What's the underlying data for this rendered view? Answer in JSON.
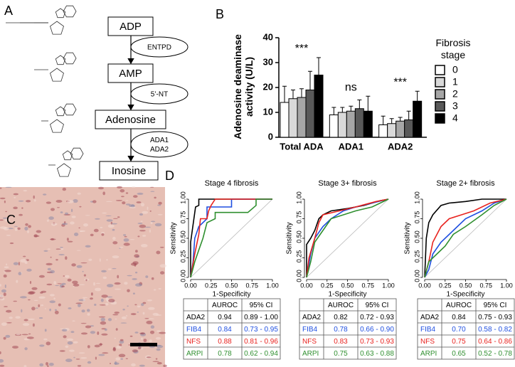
{
  "panel_labels": {
    "a": "A",
    "b": "B",
    "c": "C",
    "d": "D"
  },
  "diagram": {
    "nodes": [
      "ADP",
      "AMP",
      "Adenosine",
      "Inosine"
    ],
    "enzymes": [
      [
        "ENTPD"
      ],
      [
        "5’-NT"
      ],
      [
        "ADA1",
        "ADA2"
      ]
    ]
  },
  "chart_data": [
    {
      "type": "bar",
      "y_label": "Adenosine deaminase activity (U/L)",
      "legend_title": "Fibrosis stage",
      "categories": [
        "Total ADA",
        "ADA1",
        "ADA2"
      ],
      "annotations": [
        "***",
        "ns",
        "***"
      ],
      "series": [
        {
          "name": "0",
          "color": "#ffffff",
          "values": [
            14,
            9,
            5
          ],
          "errors": [
            6.5,
            3,
            3.5
          ]
        },
        {
          "name": "1",
          "color": "#d9d9d9",
          "values": [
            15.5,
            10,
            5.5
          ],
          "errors": [
            3.5,
            2,
            2
          ]
        },
        {
          "name": "2",
          "color": "#a6a6a6",
          "values": [
            16,
            10.5,
            6.5
          ],
          "errors": [
            3.5,
            2,
            1.5
          ]
        },
        {
          "name": "3",
          "color": "#595959",
          "values": [
            19,
            11.5,
            7
          ],
          "errors": [
            7.5,
            3.5,
            3.5
          ]
        },
        {
          "name": "4",
          "color": "#000000",
          "values": [
            25,
            10.5,
            14.5
          ],
          "errors": [
            7,
            6,
            4
          ]
        }
      ],
      "ylim": [
        0,
        40
      ],
      "yticks": [
        0,
        10,
        20,
        30,
        40
      ]
    },
    {
      "type": "line",
      "title": "Stage 4 fibrosis",
      "x_label": "1-Specificity",
      "y_label": "Sensitivity",
      "xlim": [
        0,
        1
      ],
      "ylim": [
        0,
        1
      ],
      "xticks": [
        {
          "value": 0,
          "label": "0.00"
        },
        {
          "value": 0.25,
          "label": "0.25"
        },
        {
          "value": 0.5,
          "label": "0.50"
        },
        {
          "value": 0.75,
          "label": "0.75"
        },
        {
          "value": 1,
          "label": "1.00"
        }
      ],
      "yticks": [
        {
          "value": 0,
          "label": "0.00"
        },
        {
          "value": 0.25,
          "label": "0.25"
        },
        {
          "value": 0.5,
          "label": "0.50"
        },
        {
          "value": 0.75,
          "label": "0.75"
        },
        {
          "value": 1,
          "label": "1.00"
        }
      ],
      "table_header": [
        "AUROC",
        "95% CI"
      ],
      "series": [
        {
          "name": "ADA2",
          "color": "#000000",
          "auroc": "0.94",
          "ci": "0.89 - 1.00",
          "x": [
            0,
            0,
            0.02,
            0.04,
            0.06,
            0.1,
            0.1,
            1
          ],
          "values": [
            0,
            0.45,
            0.6,
            0.75,
            0.9,
            0.92,
            1,
            1
          ]
        },
        {
          "name": "FIB4",
          "color": "#1f4fe0",
          "auroc": "0.84",
          "ci": "0.73 - 0.95",
          "x": [
            0,
            0.03,
            0.05,
            0.1,
            0.2,
            0.2,
            0.5,
            0.5,
            1
          ],
          "values": [
            0,
            0.2,
            0.5,
            0.65,
            0.75,
            0.9,
            0.9,
            1,
            1
          ]
        },
        {
          "name": "NFS",
          "color": "#e8231f",
          "auroc": "0.88",
          "ci": "0.81 - 0.96",
          "x": [
            0,
            0.05,
            0.1,
            0.12,
            0.2,
            0.22,
            0.25,
            0.3,
            1
          ],
          "values": [
            0,
            0.3,
            0.55,
            0.75,
            0.75,
            0.85,
            0.92,
            1,
            1
          ]
        },
        {
          "name": "ARPI",
          "color": "#2f8f2f",
          "auroc": "0.78",
          "ci": "0.62 - 0.94",
          "x": [
            0,
            0.05,
            0.1,
            0.15,
            0.2,
            0.3,
            0.3,
            0.7,
            0.8,
            0.8,
            1
          ],
          "values": [
            0,
            0.2,
            0.35,
            0.5,
            0.7,
            0.75,
            0.83,
            0.83,
            0.92,
            1,
            1
          ]
        }
      ]
    },
    {
      "type": "line",
      "title": "Stage 3+ fibrosis",
      "x_label": "1-Specificity",
      "y_label": "Sensitivity",
      "xlim": [
        0,
        1
      ],
      "ylim": [
        0,
        1
      ],
      "xticks": [
        {
          "value": 0,
          "label": "0.00"
        },
        {
          "value": 0.25,
          "label": "0.25"
        },
        {
          "value": 0.5,
          "label": "0.50"
        },
        {
          "value": 0.75,
          "label": "0.75"
        },
        {
          "value": 1,
          "label": "1.00"
        }
      ],
      "yticks": [
        {
          "value": 0,
          "label": "0.00"
        },
        {
          "value": 0.25,
          "label": "0.25"
        },
        {
          "value": 0.5,
          "label": "0.50"
        },
        {
          "value": 0.75,
          "label": "0.75"
        },
        {
          "value": 1,
          "label": "1.00"
        }
      ],
      "table_header": [
        "AUROC",
        "95% CI"
      ],
      "series": [
        {
          "name": "ADA2",
          "color": "#000000",
          "auroc": "0.82",
          "ci": "0.72 - 0.93",
          "x": [
            0,
            0,
            0.05,
            0.1,
            0.15,
            0.2,
            0.3,
            0.5,
            0.7,
            0.9,
            1
          ],
          "values": [
            0,
            0.42,
            0.5,
            0.6,
            0.75,
            0.8,
            0.85,
            0.88,
            0.92,
            0.98,
            1
          ]
        },
        {
          "name": "FIB4",
          "color": "#1f4fe0",
          "auroc": "0.78",
          "ci": "0.66 - 0.90",
          "x": [
            0,
            0.05,
            0.1,
            0.2,
            0.3,
            0.45,
            0.6,
            0.8,
            1
          ],
          "values": [
            0,
            0.3,
            0.5,
            0.65,
            0.75,
            0.85,
            0.9,
            0.95,
            1
          ]
        },
        {
          "name": "NFS",
          "color": "#e8231f",
          "auroc": "0.83",
          "ci": "0.73 - 0.93",
          "x": [
            0,
            0.03,
            0.1,
            0.15,
            0.2,
            0.4,
            0.6,
            0.85,
            1
          ],
          "values": [
            0,
            0.25,
            0.5,
            0.7,
            0.8,
            0.85,
            0.9,
            0.97,
            1
          ]
        },
        {
          "name": "ARPI",
          "color": "#2f8f2f",
          "auroc": "0.75",
          "ci": "0.63 - 0.88",
          "x": [
            0,
            0.05,
            0.1,
            0.2,
            0.3,
            0.45,
            0.6,
            0.8,
            1
          ],
          "values": [
            0,
            0.2,
            0.45,
            0.6,
            0.75,
            0.8,
            0.85,
            0.9,
            1
          ]
        }
      ]
    },
    {
      "type": "line",
      "title": "Stage 2+ fibrosis",
      "x_label": "1-Specificity",
      "y_label": "Sensitivity",
      "xlim": [
        0,
        1
      ],
      "ylim": [
        0,
        1
      ],
      "xticks": [
        {
          "value": 0,
          "label": "0.00"
        },
        {
          "value": 0.25,
          "label": "0.25"
        },
        {
          "value": 0.5,
          "label": "0.50"
        },
        {
          "value": 0.75,
          "label": "0.75"
        },
        {
          "value": 1,
          "label": "1.00"
        }
      ],
      "yticks": [
        {
          "value": 0,
          "label": "0.00"
        },
        {
          "value": 0.25,
          "label": "0.25"
        },
        {
          "value": 0.5,
          "label": "0.50"
        },
        {
          "value": 0.75,
          "label": "0.75"
        },
        {
          "value": 1,
          "label": "1.00"
        }
      ],
      "table_header": [
        "AUROC",
        "95% CI"
      ],
      "series": [
        {
          "name": "ADA2",
          "color": "#000000",
          "auroc": "0.84",
          "ci": "0.75 - 0.93",
          "x": [
            0,
            0.02,
            0.05,
            0.1,
            0.2,
            0.3,
            0.5,
            0.7,
            1
          ],
          "values": [
            0,
            0.5,
            0.7,
            0.8,
            0.92,
            0.95,
            0.97,
            1,
            1
          ]
        },
        {
          "name": "FIB4",
          "color": "#1f4fe0",
          "auroc": "0.70",
          "ci": "0.58 - 0.82",
          "x": [
            0,
            0.05,
            0.1,
            0.2,
            0.35,
            0.5,
            0.7,
            0.85,
            1
          ],
          "values": [
            0,
            0.1,
            0.3,
            0.45,
            0.6,
            0.75,
            0.85,
            0.95,
            1
          ]
        },
        {
          "name": "NFS",
          "color": "#e8231f",
          "auroc": "0.75",
          "ci": "0.64 - 0.86",
          "x": [
            0,
            0.05,
            0.1,
            0.2,
            0.3,
            0.45,
            0.6,
            0.8,
            1
          ],
          "values": [
            0,
            0.2,
            0.45,
            0.65,
            0.75,
            0.8,
            0.85,
            0.95,
            1
          ]
        },
        {
          "name": "ARPI",
          "color": "#2f8f2f",
          "auroc": "0.65",
          "ci": "0.52 - 0.78",
          "x": [
            0,
            0.05,
            0.15,
            0.25,
            0.35,
            0.5,
            0.7,
            0.85,
            1
          ],
          "values": [
            0,
            0.2,
            0.3,
            0.4,
            0.55,
            0.65,
            0.8,
            0.92,
            1
          ]
        }
      ]
    }
  ]
}
